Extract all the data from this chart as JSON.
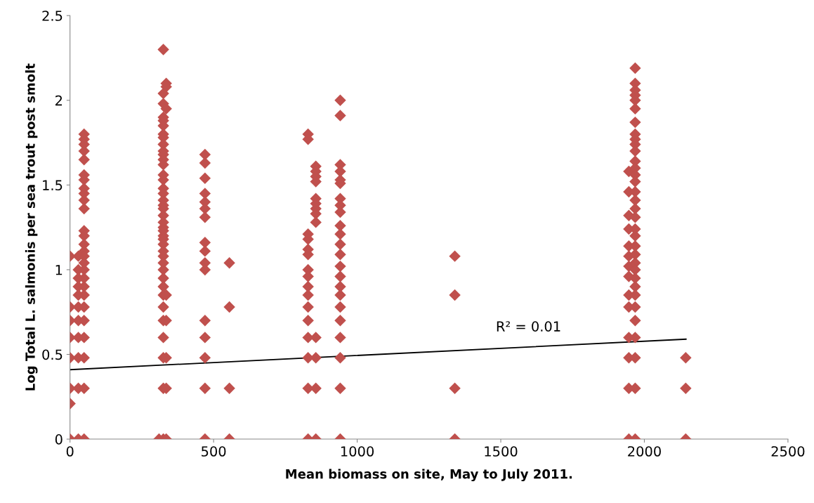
{
  "chart_data": {
    "type": "scatter",
    "xlabel": "Mean biomass on site, May to July 2011.",
    "ylabel": "Log Total L. salmonis per sea trout post smolt",
    "xlim": [
      0,
      2500
    ],
    "xticks": [
      0,
      500,
      1000,
      1500,
      2000,
      2500
    ],
    "ylim": [
      0,
      2.5
    ],
    "yticks": [
      0,
      0.5,
      1,
      1.5,
      2,
      2.5
    ],
    "grid": false,
    "legend": false,
    "marker": "diamond",
    "annotations": [
      "R² = 0.01"
    ],
    "series": [
      {
        "color": "#c0504d",
        "x": [
          0,
          0,
          0,
          0,
          0,
          0,
          0,
          0,
          29,
          29,
          29,
          29,
          29,
          29,
          29,
          29,
          29,
          29,
          29,
          49,
          49,
          49,
          49,
          49,
          49,
          49,
          49,
          49,
          49,
          49,
          49,
          49,
          49,
          49,
          49,
          49,
          49,
          49,
          49,
          49,
          49,
          49,
          49,
          49,
          49,
          49,
          310,
          325,
          325,
          325,
          325,
          325,
          325,
          325,
          325,
          325,
          325,
          325,
          325,
          325,
          325,
          325,
          325,
          325,
          325,
          325,
          325,
          325,
          325,
          325,
          325,
          325,
          325,
          325,
          325,
          325,
          325,
          325,
          325,
          325,
          325,
          325,
          325,
          325,
          325,
          325,
          325,
          335,
          335,
          335,
          335,
          335,
          335,
          335,
          335,
          470,
          470,
          470,
          470,
          470,
          470,
          470,
          470,
          470,
          470,
          470,
          470,
          470,
          470,
          470,
          470,
          555,
          555,
          555,
          555,
          829,
          829,
          829,
          829,
          829,
          829,
          829,
          829,
          829,
          829,
          829,
          829,
          829,
          829,
          829,
          829,
          856,
          856,
          856,
          856,
          856,
          856,
          856,
          856,
          856,
          856,
          856,
          856,
          856,
          941,
          941,
          941,
          941,
          941,
          941,
          941,
          941,
          941,
          941,
          941,
          941,
          941,
          941,
          941,
          941,
          941,
          941,
          941,
          941,
          941,
          941,
          941,
          1340,
          1340,
          1340,
          1340,
          1946,
          1946,
          1946,
          1946,
          1946,
          1946,
          1946,
          1946,
          1946,
          1946,
          1946,
          1946,
          1946,
          1946,
          1968,
          1968,
          1968,
          1968,
          1968,
          1968,
          1968,
          1968,
          1968,
          1968,
          1968,
          1968,
          1968,
          1968,
          1968,
          1968,
          1968,
          1968,
          1968,
          1968,
          1968,
          1968,
          1968,
          1968,
          1968,
          1968,
          1968,
          1968,
          1968,
          1968,
          1968,
          1968,
          1968,
          1968,
          2144,
          2144,
          2144
        ],
        "values": [
          0,
          0.21,
          0.3,
          0.48,
          0.6,
          0.7,
          0.78,
          1.08,
          1.08,
          1.0,
          0.95,
          0.9,
          0.85,
          0.78,
          0.7,
          0.6,
          0.48,
          0.3,
          0,
          1.8,
          1.77,
          1.74,
          1.7,
          1.65,
          1.56,
          1.53,
          1.48,
          1.45,
          1.41,
          1.36,
          1.23,
          1.2,
          1.15,
          1.11,
          1.08,
          1.04,
          1.0,
          0.95,
          0.9,
          0.85,
          0.78,
          0.7,
          0.6,
          0.48,
          0.3,
          0,
          0,
          2.3,
          2.04,
          1.98,
          1.9,
          1.88,
          1.85,
          1.8,
          1.78,
          1.74,
          1.7,
          1.68,
          1.65,
          1.62,
          1.56,
          1.53,
          1.48,
          1.45,
          1.41,
          1.38,
          1.36,
          1.32,
          1.28,
          1.25,
          1.23,
          1.2,
          1.18,
          1.15,
          1.11,
          1.08,
          1.04,
          1.0,
          0.95,
          0.9,
          0.85,
          0.78,
          0.7,
          0.6,
          0.48,
          0.3,
          0,
          2.1,
          2.08,
          1.95,
          0.85,
          0.7,
          0.48,
          0.3,
          0,
          1.68,
          1.63,
          1.54,
          1.45,
          1.4,
          1.36,
          1.31,
          1.16,
          1.11,
          1.04,
          1.0,
          0.7,
          0.6,
          0.48,
          0.3,
          0,
          1.04,
          0.78,
          0.3,
          0,
          1.8,
          1.77,
          1.21,
          1.18,
          1.12,
          1.09,
          1.0,
          0.96,
          0.9,
          0.85,
          0.78,
          0.7,
          0.6,
          0.48,
          0.3,
          0,
          1.61,
          1.58,
          1.55,
          1.52,
          1.42,
          1.39,
          1.36,
          1.33,
          1.28,
          0.6,
          0.48,
          0.3,
          0,
          2.0,
          1.91,
          1.62,
          1.58,
          1.53,
          1.51,
          1.42,
          1.38,
          1.34,
          1.26,
          1.21,
          1.15,
          1.09,
          1.02,
          0.96,
          0.9,
          0.85,
          0.78,
          0.7,
          0.6,
          0.48,
          0.3,
          0,
          1.08,
          0.85,
          0.3,
          0,
          1.58,
          1.46,
          1.32,
          1.24,
          1.14,
          1.08,
          1.02,
          0.96,
          0.85,
          0.78,
          0.6,
          0.48,
          0.3,
          0,
          2.19,
          2.1,
          2.06,
          2.03,
          2.0,
          1.95,
          1.87,
          1.8,
          1.77,
          1.74,
          1.7,
          1.64,
          1.6,
          1.56,
          1.52,
          1.46,
          1.41,
          1.36,
          1.31,
          1.24,
          1.2,
          1.14,
          1.09,
          1.04,
          1.0,
          0.95,
          0.9,
          0.85,
          0.78,
          0.7,
          0.6,
          0.48,
          0.3,
          0,
          0.48,
          0.3,
          0
        ]
      },
      {
        "type": "line",
        "color": "#000000",
        "marker": "none",
        "x": [
          0,
          2145
        ],
        "values": [
          0.41,
          0.59
        ]
      }
    ]
  }
}
